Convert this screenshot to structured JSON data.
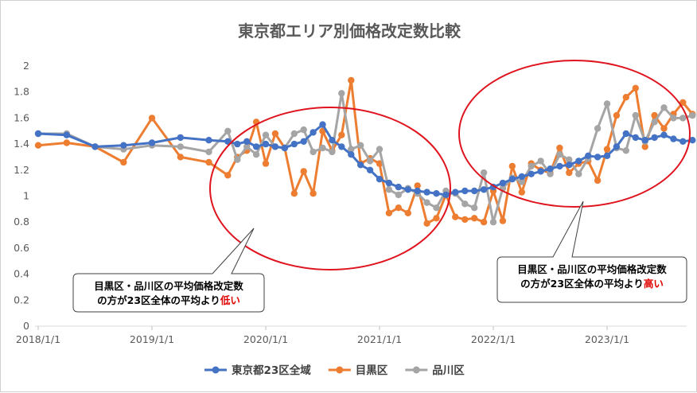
{
  "chart_data": {
    "type": "line",
    "title": "東京都エリア別価格改定数比較",
    "ylim": [
      0,
      2
    ],
    "yticks": [
      "0",
      "0.2",
      "0.4",
      "0.6",
      "0.8",
      "1",
      "1.2",
      "1.4",
      "1.6",
      "1.8",
      "2"
    ],
    "xticks": [
      "2018/1/1",
      "2019/1/1",
      "2020/1/1",
      "2021/1/1",
      "2022/1/1",
      "2023/1/1"
    ],
    "grid": false,
    "legend_position": "bottom",
    "series": [
      {
        "name": "東京都23区全域",
        "color": "#4472C4",
        "points": [
          [
            "2018-01",
            1.48
          ],
          [
            "2018-04",
            1.47
          ],
          [
            "2018-07",
            1.38
          ],
          [
            "2018-10",
            1.39
          ],
          [
            "2019-01",
            1.41
          ],
          [
            "2019-04",
            1.45
          ],
          [
            "2019-07",
            1.43
          ],
          [
            "2019-09",
            1.42
          ],
          [
            "2019-10",
            1.4
          ],
          [
            "2019-11",
            1.42
          ],
          [
            "2019-12",
            1.38
          ],
          [
            "2020-01",
            1.4
          ],
          [
            "2020-02",
            1.38
          ],
          [
            "2020-03",
            1.37
          ],
          [
            "2020-04",
            1.4
          ],
          [
            "2020-05",
            1.42
          ],
          [
            "2020-06",
            1.49
          ],
          [
            "2020-07",
            1.55
          ],
          [
            "2020-08",
            1.43
          ],
          [
            "2020-09",
            1.38
          ],
          [
            "2020-10",
            1.32
          ],
          [
            "2020-11",
            1.24
          ],
          [
            "2020-12",
            1.2
          ],
          [
            "2021-01",
            1.13
          ],
          [
            "2021-02",
            1.1
          ],
          [
            "2021-03",
            1.07
          ],
          [
            "2021-04",
            1.05
          ],
          [
            "2021-05",
            1.04
          ],
          [
            "2021-06",
            1.03
          ],
          [
            "2021-07",
            1.02
          ],
          [
            "2021-08",
            1.01
          ],
          [
            "2021-09",
            1.03
          ],
          [
            "2021-10",
            1.04
          ],
          [
            "2021-11",
            1.04
          ],
          [
            "2021-12",
            1.05
          ],
          [
            "2022-01",
            1.07
          ],
          [
            "2022-02",
            1.1
          ],
          [
            "2022-03",
            1.13
          ],
          [
            "2022-04",
            1.15
          ],
          [
            "2022-05",
            1.17
          ],
          [
            "2022-06",
            1.19
          ],
          [
            "2022-07",
            1.21
          ],
          [
            "2022-08",
            1.23
          ],
          [
            "2022-09",
            1.24
          ],
          [
            "2022-10",
            1.27
          ],
          [
            "2022-11",
            1.31
          ],
          [
            "2022-12",
            1.3
          ],
          [
            "2023-01",
            1.31
          ],
          [
            "2023-02",
            1.38
          ],
          [
            "2023-03",
            1.48
          ],
          [
            "2023-04",
            1.45
          ],
          [
            "2023-05",
            1.43
          ],
          [
            "2023-06",
            1.45
          ],
          [
            "2023-07",
            1.47
          ],
          [
            "2023-08",
            1.44
          ],
          [
            "2023-09",
            1.42
          ],
          [
            "2023-10",
            1.43
          ]
        ]
      },
      {
        "name": "目黒区",
        "color": "#ED7D31",
        "points": [
          [
            "2018-01",
            1.39
          ],
          [
            "2018-04",
            1.41
          ],
          [
            "2018-07",
            1.38
          ],
          [
            "2018-10",
            1.26
          ],
          [
            "2019-01",
            1.6
          ],
          [
            "2019-04",
            1.3
          ],
          [
            "2019-07",
            1.26
          ],
          [
            "2019-09",
            1.16
          ],
          [
            "2019-10",
            1.3
          ],
          [
            "2019-11",
            1.35
          ],
          [
            "2019-12",
            1.57
          ],
          [
            "2020-01",
            1.25
          ],
          [
            "2020-02",
            1.48
          ],
          [
            "2020-03",
            1.37
          ],
          [
            "2020-04",
            1.02
          ],
          [
            "2020-05",
            1.19
          ],
          [
            "2020-06",
            1.02
          ],
          [
            "2020-07",
            1.5
          ],
          [
            "2020-08",
            1.35
          ],
          [
            "2020-09",
            1.47
          ],
          [
            "2020-10",
            1.89
          ],
          [
            "2020-11",
            1.25
          ],
          [
            "2020-12",
            1.29
          ],
          [
            "2021-01",
            1.25
          ],
          [
            "2021-02",
            0.87
          ],
          [
            "2021-03",
            0.91
          ],
          [
            "2021-04",
            0.87
          ],
          [
            "2021-05",
            1.08
          ],
          [
            "2021-06",
            0.79
          ],
          [
            "2021-07",
            0.83
          ],
          [
            "2021-08",
            1.01
          ],
          [
            "2021-09",
            0.84
          ],
          [
            "2021-10",
            0.82
          ],
          [
            "2021-11",
            0.83
          ],
          [
            "2021-12",
            0.8
          ],
          [
            "2022-01",
            1.04
          ],
          [
            "2022-02",
            0.81
          ],
          [
            "2022-03",
            1.23
          ],
          [
            "2022-04",
            1.03
          ],
          [
            "2022-05",
            1.25
          ],
          [
            "2022-06",
            1.2
          ],
          [
            "2022-07",
            1.18
          ],
          [
            "2022-08",
            1.37
          ],
          [
            "2022-09",
            1.18
          ],
          [
            "2022-10",
            1.25
          ],
          [
            "2022-11",
            1.27
          ],
          [
            "2022-12",
            1.12
          ],
          [
            "2023-01",
            1.36
          ],
          [
            "2023-02",
            1.62
          ],
          [
            "2023-03",
            1.76
          ],
          [
            "2023-04",
            1.83
          ],
          [
            "2023-05",
            1.38
          ],
          [
            "2023-06",
            1.62
          ],
          [
            "2023-07",
            1.52
          ],
          [
            "2023-08",
            1.63
          ],
          [
            "2023-09",
            1.72
          ],
          [
            "2023-10",
            1.63
          ]
        ]
      },
      {
        "name": "品川区",
        "color": "#A5A5A5",
        "points": [
          [
            "2018-01",
            1.48
          ],
          [
            "2018-04",
            1.48
          ],
          [
            "2018-07",
            1.38
          ],
          [
            "2018-10",
            1.36
          ],
          [
            "2019-01",
            1.39
          ],
          [
            "2019-04",
            1.38
          ],
          [
            "2019-07",
            1.34
          ],
          [
            "2019-09",
            1.5
          ],
          [
            "2019-10",
            1.28
          ],
          [
            "2019-11",
            1.38
          ],
          [
            "2019-12",
            1.32
          ],
          [
            "2020-01",
            1.47
          ],
          [
            "2020-02",
            1.38
          ],
          [
            "2020-03",
            1.37
          ],
          [
            "2020-04",
            1.48
          ],
          [
            "2020-05",
            1.51
          ],
          [
            "2020-06",
            1.34
          ],
          [
            "2020-07",
            1.37
          ],
          [
            "2020-08",
            1.34
          ],
          [
            "2020-09",
            1.79
          ],
          [
            "2020-10",
            1.36
          ],
          [
            "2020-11",
            1.39
          ],
          [
            "2020-12",
            1.27
          ],
          [
            "2021-01",
            1.36
          ],
          [
            "2021-02",
            1.05
          ],
          [
            "2021-03",
            1.01
          ],
          [
            "2021-04",
            1.06
          ],
          [
            "2021-05",
            1.02
          ],
          [
            "2021-06",
            0.95
          ],
          [
            "2021-07",
            0.91
          ],
          [
            "2021-08",
            1.04
          ],
          [
            "2021-09",
            1.02
          ],
          [
            "2021-10",
            0.94
          ],
          [
            "2021-11",
            0.91
          ],
          [
            "2021-12",
            1.18
          ],
          [
            "2022-01",
            0.8
          ],
          [
            "2022-02",
            1.06
          ],
          [
            "2022-03",
            1.14
          ],
          [
            "2022-04",
            1.11
          ],
          [
            "2022-05",
            1.23
          ],
          [
            "2022-06",
            1.27
          ],
          [
            "2022-07",
            1.17
          ],
          [
            "2022-08",
            1.32
          ],
          [
            "2022-09",
            1.28
          ],
          [
            "2022-10",
            1.17
          ],
          [
            "2022-11",
            1.29
          ],
          [
            "2022-12",
            1.52
          ],
          [
            "2023-01",
            1.71
          ],
          [
            "2023-02",
            1.37
          ],
          [
            "2023-03",
            1.35
          ],
          [
            "2023-04",
            1.62
          ],
          [
            "2023-05",
            1.42
          ],
          [
            "2023-06",
            1.57
          ],
          [
            "2023-07",
            1.68
          ],
          [
            "2023-08",
            1.6
          ],
          [
            "2023-09",
            1.6
          ],
          [
            "2023-10",
            1.62
          ]
        ]
      }
    ],
    "annotations": [
      {
        "text_before": "目黒区・品川区の平均価格改定数\nの方が23区全体の平均より",
        "highlight": "低い",
        "highlight_color": "#E00000",
        "circle_color": "#E0141E"
      },
      {
        "text_before": "目黒区・品川区の平均価格改定数\nの方が23区全体の平均より",
        "highlight": "高い",
        "highlight_color": "#E00000",
        "circle_color": "#E0141E"
      }
    ]
  }
}
